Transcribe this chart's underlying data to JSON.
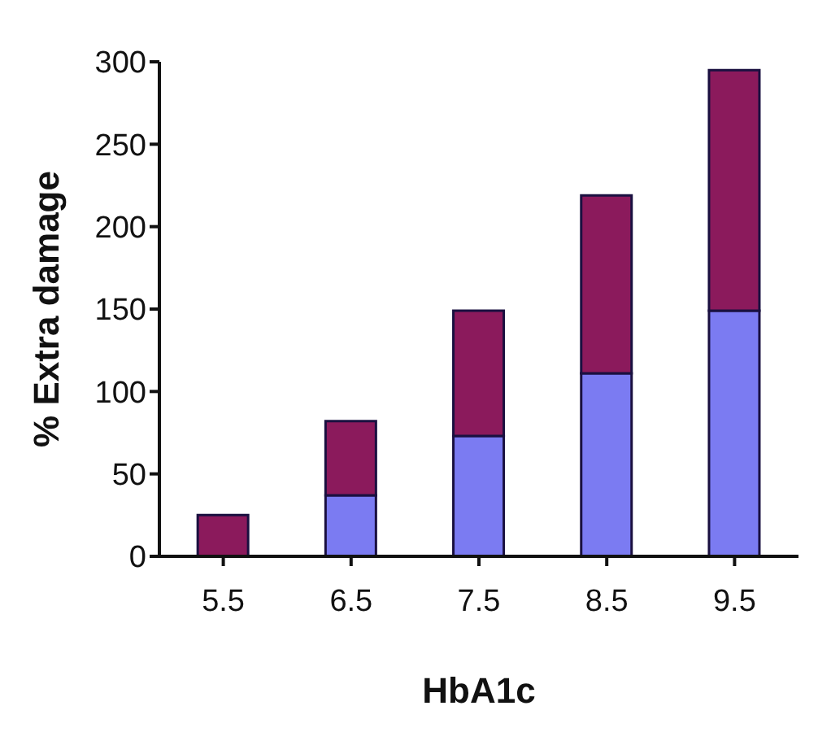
{
  "chart_data": {
    "type": "bar",
    "xlabel": "HbA1c",
    "ylabel": "% Extra damage",
    "categories": [
      "5.5",
      "6.5",
      "7.5",
      "8.5",
      "9.5"
    ],
    "stacked": true,
    "series": [
      {
        "color": "#7b7bf2",
        "values": [
          0,
          37,
          73,
          111,
          149
        ]
      },
      {
        "color": "#8b1a5c",
        "values": [
          25,
          45,
          76,
          108,
          146
        ]
      }
    ],
    "ylim": [
      0,
      300
    ],
    "yticks": [
      0,
      50,
      100,
      150,
      200,
      250,
      300
    ],
    "grid": false,
    "legend": false
  }
}
